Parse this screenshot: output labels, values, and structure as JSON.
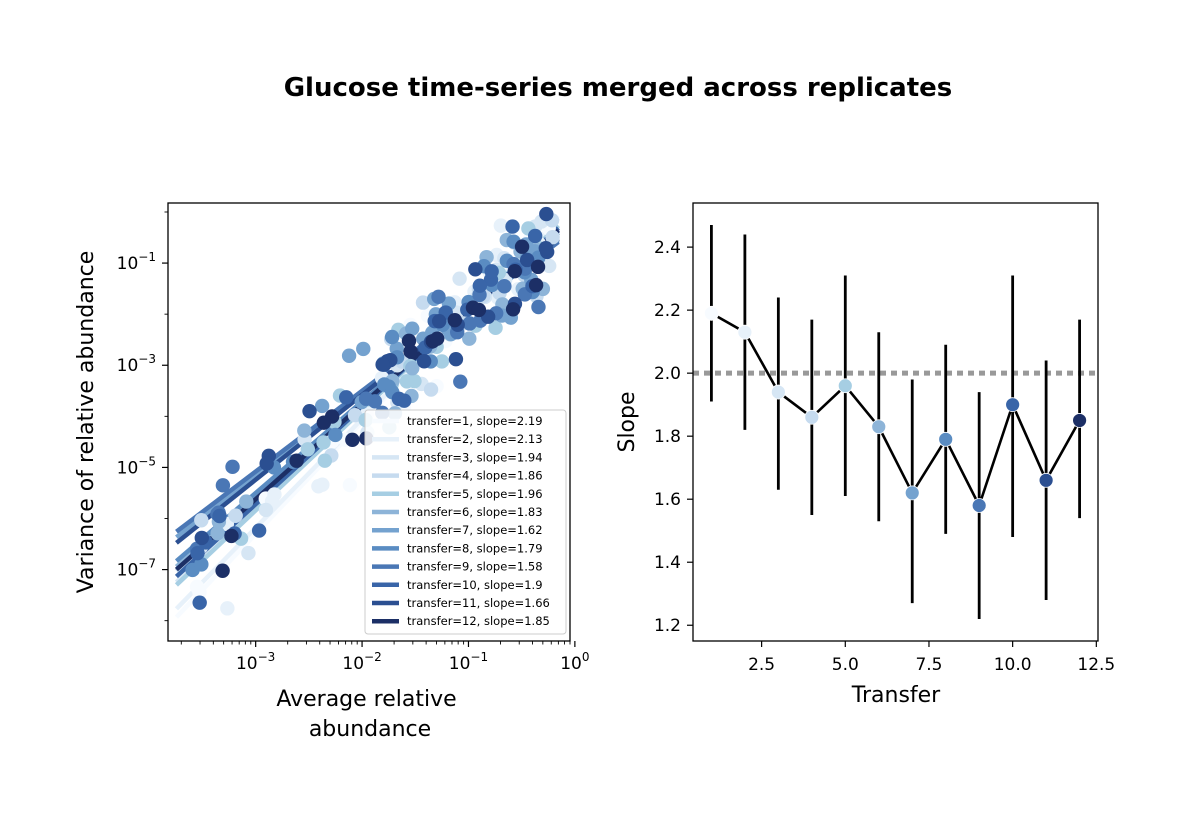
{
  "title": "Glucose time-series merged across replicates",
  "colors": [
    "#f7fbff",
    "#e7f1fa",
    "#d6e6f4",
    "#c6dbef",
    "#a6cee3",
    "#8db4d8",
    "#74a2cf",
    "#5a8cc2",
    "#4a77b5",
    "#3965a8",
    "#2b4f91",
    "#1c2f66"
  ],
  "chart_data": [
    {
      "type": "scatter",
      "scale": "log-log",
      "xlabel": "Average relative abundance",
      "ylabel": "Variance of relative abundance",
      "xlim": [
        0.00015,
        0.9
      ],
      "ylim": [
        4e-09,
        1.5
      ],
      "x_ticks": [
        "10^-3",
        "10^-2",
        "10^-1",
        "10^0"
      ],
      "y_ticks": [
        "10^-7",
        "10^-5",
        "10^-3",
        "10^-1"
      ],
      "legend_position": "lower-right",
      "series": [
        {
          "name": "transfer=1, slope=2.19",
          "transfer": 1,
          "slope": 2.19
        },
        {
          "name": "transfer=2, slope=2.13",
          "transfer": 2,
          "slope": 2.13
        },
        {
          "name": "transfer=3, slope=1.94",
          "transfer": 3,
          "slope": 1.94
        },
        {
          "name": "transfer=4, slope=1.86",
          "transfer": 4,
          "slope": 1.86
        },
        {
          "name": "transfer=5, slope=1.96",
          "transfer": 5,
          "slope": 1.96
        },
        {
          "name": "transfer=6, slope=1.83",
          "transfer": 6,
          "slope": 1.83
        },
        {
          "name": "transfer=7, slope=1.62",
          "transfer": 7,
          "slope": 1.62
        },
        {
          "name": "transfer=8, slope=1.79",
          "transfer": 8,
          "slope": 1.79
        },
        {
          "name": "transfer=9, slope=1.58",
          "transfer": 9,
          "slope": 1.58
        },
        {
          "name": "transfer=10, slope=1.9",
          "transfer": 10,
          "slope": 1.9
        },
        {
          "name": "transfer=11, slope=1.66",
          "transfer": 11,
          "slope": 1.66
        },
        {
          "name": "transfer=12, slope=1.85",
          "transfer": 12,
          "slope": 1.85
        }
      ]
    },
    {
      "type": "line",
      "xlabel": "Transfer",
      "ylabel": "Slope",
      "xlim": [
        0.45,
        12.55
      ],
      "ylim": [
        1.15,
        2.54
      ],
      "x_ticks": [
        "2.5",
        "5.0",
        "7.5",
        "10.0",
        "12.5"
      ],
      "y_ticks": [
        "1.2",
        "1.4",
        "1.6",
        "1.8",
        "2.0",
        "2.2",
        "2.4"
      ],
      "reference_line": 2.0,
      "x": [
        1,
        2,
        3,
        4,
        5,
        6,
        7,
        8,
        9,
        10,
        11,
        12
      ],
      "y": [
        2.19,
        2.13,
        1.94,
        1.86,
        1.96,
        1.83,
        1.62,
        1.79,
        1.58,
        1.9,
        1.66,
        1.85
      ],
      "err_low": [
        1.91,
        1.82,
        1.63,
        1.55,
        1.61,
        1.53,
        1.27,
        1.49,
        1.22,
        1.48,
        1.28,
        1.54
      ],
      "err_high": [
        2.47,
        2.44,
        2.24,
        2.17,
        2.31,
        2.13,
        1.98,
        2.09,
        1.94,
        2.31,
        2.04,
        2.17
      ]
    }
  ]
}
